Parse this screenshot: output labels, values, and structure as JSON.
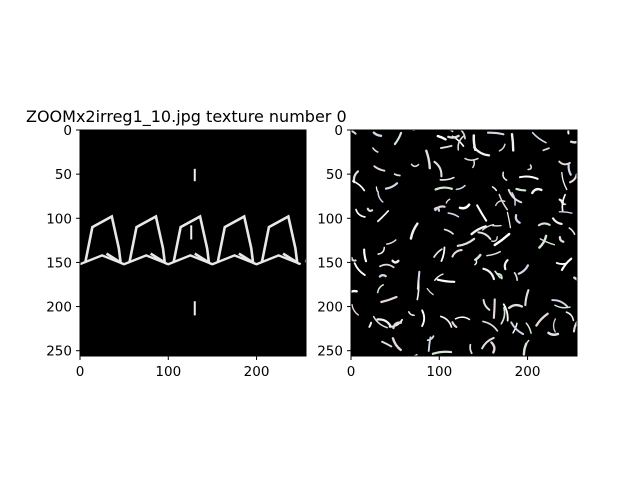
{
  "figure": {
    "title": "ZOOMx2irreg1_10.jpg texture number 0",
    "background_color": "#ffffff",
    "axes_color": "#000000"
  },
  "panels": [
    {
      "name": "left-image",
      "image_size": 256,
      "xlim": [
        0,
        256
      ],
      "ylim": [
        256,
        0
      ],
      "xticks": [
        "0",
        "100",
        "200"
      ],
      "xtick_values": [
        0,
        100,
        200
      ],
      "yticks": [
        "0",
        "50",
        "100",
        "150",
        "200",
        "250"
      ],
      "ytick_values": [
        0,
        50,
        100,
        150,
        200,
        250
      ],
      "content": "periodic-polygon-texture",
      "stroke_color": "#e8e8e8"
    },
    {
      "name": "right-image",
      "image_size": 256,
      "xlim": [
        0,
        256
      ],
      "ylim": [
        256,
        0
      ],
      "xticks": [
        "0",
        "100",
        "200"
      ],
      "xtick_values": [
        0,
        100,
        200
      ],
      "yticks": [
        "0",
        "50",
        "100",
        "150",
        "200",
        "250"
      ],
      "ytick_values": [
        0,
        50,
        100,
        150,
        200,
        250
      ],
      "content": "irregular-stroke-texture",
      "stroke_color": "#e0e0e0"
    }
  ]
}
